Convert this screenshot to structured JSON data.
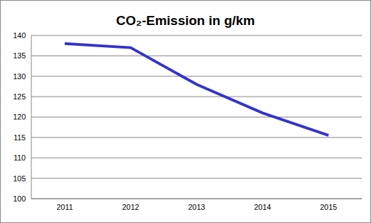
{
  "chart_data": {
    "type": "line",
    "title": "CO₂-Emission in g/km",
    "categories": [
      "2011",
      "2012",
      "2013",
      "2014",
      "2015"
    ],
    "values": [
      138,
      137,
      128,
      121,
      115.5
    ],
    "color": "#3333cc",
    "ylim": [
      100,
      140
    ],
    "yticks": [
      100,
      105,
      110,
      115,
      120,
      125,
      130,
      135,
      140
    ],
    "grid": true
  }
}
